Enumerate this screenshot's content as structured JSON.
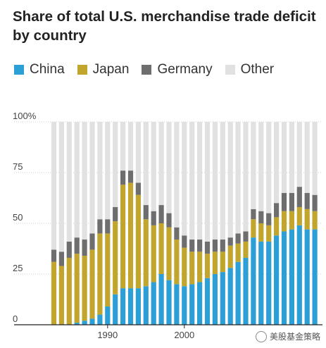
{
  "chart_data": {
    "type": "bar",
    "stacked": true,
    "title": "Share of total U.S. merchandise trade deficit by country",
    "xlabel": "",
    "ylabel": "",
    "ylim": [
      0,
      100
    ],
    "yticks": [
      "0",
      "25",
      "50",
      "75",
      "100%"
    ],
    "ytick_values": [
      0,
      25,
      50,
      75,
      100
    ],
    "xticks": [
      {
        "label": "1990",
        "value": 1990
      },
      {
        "label": "2000",
        "value": 2000
      }
    ],
    "grid": true,
    "legend_position": "top-left",
    "x": [
      1983,
      1984,
      1985,
      1986,
      1987,
      1988,
      1989,
      1990,
      1991,
      1992,
      1993,
      1994,
      1995,
      1996,
      1997,
      1998,
      1999,
      2000,
      2001,
      2002,
      2003,
      2004,
      2005,
      2006,
      2007,
      2008,
      2009,
      2010,
      2011,
      2012,
      2013,
      2014,
      2015,
      2016,
      2017
    ],
    "series": [
      {
        "name": "China",
        "color": "#2b9fd6",
        "values": [
          0,
          0,
          0,
          1,
          2,
          3,
          5,
          9,
          15,
          18,
          18,
          18,
          19,
          21,
          25,
          22,
          20,
          19,
          20,
          21,
          23,
          25,
          26,
          28,
          31,
          33,
          43,
          41,
          41,
          44,
          46,
          47,
          49,
          47,
          47
        ]
      },
      {
        "name": "Japan",
        "color": "#c2a52c",
        "values": [
          31,
          29,
          33,
          34,
          32,
          34,
          40,
          36,
          36,
          51,
          52,
          46,
          33,
          28,
          25,
          26,
          22,
          19,
          16,
          15,
          12,
          11,
          10,
          11,
          9,
          8,
          9,
          9,
          8,
          9,
          10,
          9,
          9,
          10,
          9
        ]
      },
      {
        "name": "Germany",
        "color": "#6e6e6e",
        "values": [
          6,
          7,
          8,
          8,
          8,
          8,
          7,
          7,
          7,
          7,
          6,
          6,
          7,
          7,
          9,
          7,
          6,
          6,
          6,
          6,
          6,
          6,
          6,
          4,
          5,
          5,
          5,
          6,
          6,
          7,
          9,
          9,
          10,
          8,
          8
        ]
      },
      {
        "name": "Other",
        "color": "#e1e1e1",
        "values": [
          63,
          64,
          59,
          57,
          58,
          55,
          48,
          48,
          42,
          24,
          24,
          30,
          41,
          44,
          41,
          45,
          52,
          56,
          58,
          58,
          59,
          58,
          58,
          57,
          55,
          54,
          43,
          44,
          45,
          40,
          35,
          35,
          32,
          35,
          36
        ]
      }
    ]
  },
  "watermark": "美股基金策略"
}
